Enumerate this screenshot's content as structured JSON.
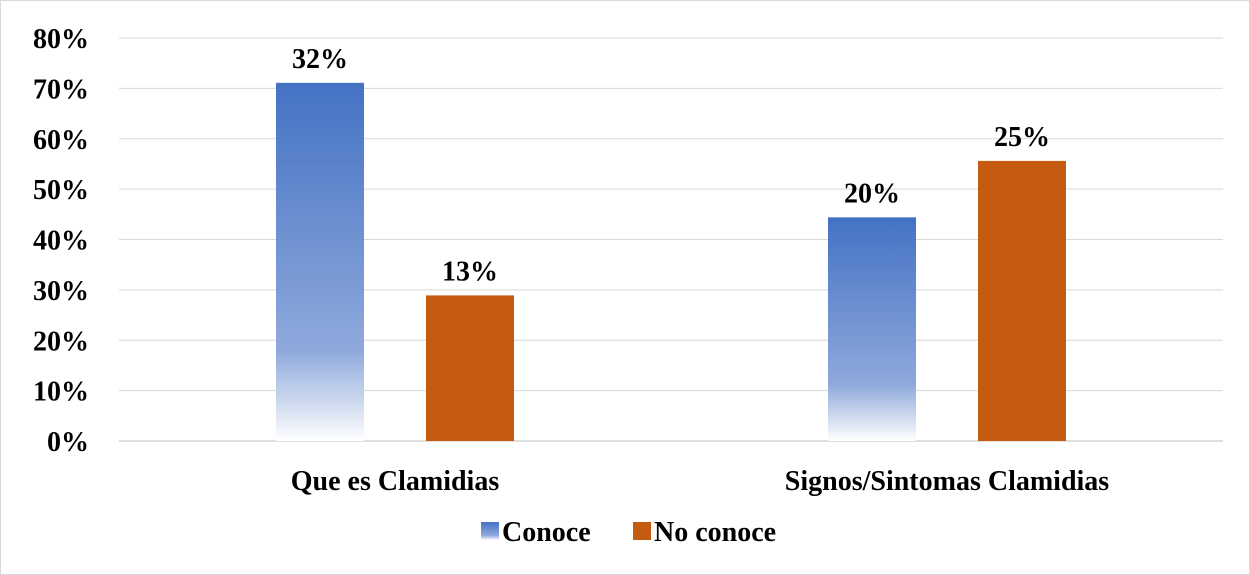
{
  "chart_data": {
    "type": "bar",
    "categories": [
      "Que es Clamidias",
      "Signos/Sintomas Clamidias"
    ],
    "series": [
      {
        "name": "Conoce",
        "values": [
          71.1,
          44.4
        ],
        "labels": [
          "32%",
          "20%"
        ],
        "color": "#4472c4",
        "fill": "gradient"
      },
      {
        "name": "No conoce",
        "values": [
          28.9,
          55.6
        ],
        "labels": [
          "13%",
          "25%"
        ],
        "color": "#c55a11",
        "fill": "solid"
      }
    ],
    "ylim": [
      0,
      80
    ],
    "yticks": [
      "0%",
      "10%",
      "20%",
      "30%",
      "40%",
      "50%",
      "60%",
      "70%",
      "80%"
    ],
    "grid": true,
    "legend_position": "bottom",
    "title": "",
    "xlabel": "",
    "ylabel": ""
  }
}
